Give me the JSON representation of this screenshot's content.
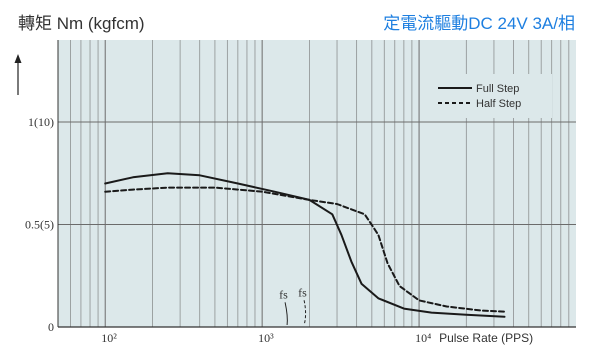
{
  "header": {
    "left_title": "轉矩 Nm (kgfcm)",
    "right_title": "定電流驅動DC 24V 3A/相"
  },
  "colors": {
    "accent": "#1e7fe0",
    "plot_bg": "#dce8ea",
    "grid": "#6b6b6b",
    "line": "#1a1a1a"
  },
  "chart_data": {
    "type": "line",
    "x_scale": "log",
    "xlim": [
      50,
      100000
    ],
    "ylim": [
      0,
      1.4
    ],
    "grid": true,
    "legend_position": "top-right",
    "x_tick_labels": [
      {
        "x": 100,
        "label": "10²"
      },
      {
        "x": 1000,
        "label": "10³"
      },
      {
        "x": 10000,
        "label": "10⁴"
      }
    ],
    "xlabel": "Pulse Rate (PPS)",
    "y_tick_labels": [
      {
        "y": 0,
        "label": "0"
      },
      {
        "y": 0.5,
        "label": "0.5(5)"
      },
      {
        "y": 1.0,
        "label": "1(10)"
      }
    ],
    "series": [
      {
        "name": "Full Step",
        "style": "solid",
        "points": [
          [
            100,
            0.7
          ],
          [
            150,
            0.73
          ],
          [
            250,
            0.75
          ],
          [
            400,
            0.74
          ],
          [
            700,
            0.7
          ],
          [
            1200,
            0.66
          ],
          [
            2000,
            0.62
          ],
          [
            2800,
            0.55
          ],
          [
            3200,
            0.45
          ],
          [
            3700,
            0.32
          ],
          [
            4300,
            0.21
          ],
          [
            5500,
            0.14
          ],
          [
            8000,
            0.09
          ],
          [
            12000,
            0.07
          ],
          [
            20000,
            0.06
          ],
          [
            35000,
            0.05
          ]
        ]
      },
      {
        "name": "Half Step",
        "style": "dashed",
        "points": [
          [
            100,
            0.66
          ],
          [
            150,
            0.67
          ],
          [
            250,
            0.68
          ],
          [
            500,
            0.68
          ],
          [
            1000,
            0.66
          ],
          [
            2000,
            0.62
          ],
          [
            3000,
            0.6
          ],
          [
            4500,
            0.55
          ],
          [
            5500,
            0.45
          ],
          [
            6300,
            0.31
          ],
          [
            7500,
            0.2
          ],
          [
            10000,
            0.13
          ],
          [
            15000,
            0.1
          ],
          [
            25000,
            0.08
          ],
          [
            35000,
            0.075
          ]
        ]
      }
    ],
    "annotations": [
      {
        "text": "fs",
        "x": 1400,
        "y": 0.14
      },
      {
        "text": "fs",
        "x": 1850,
        "y": 0.15
      }
    ]
  }
}
